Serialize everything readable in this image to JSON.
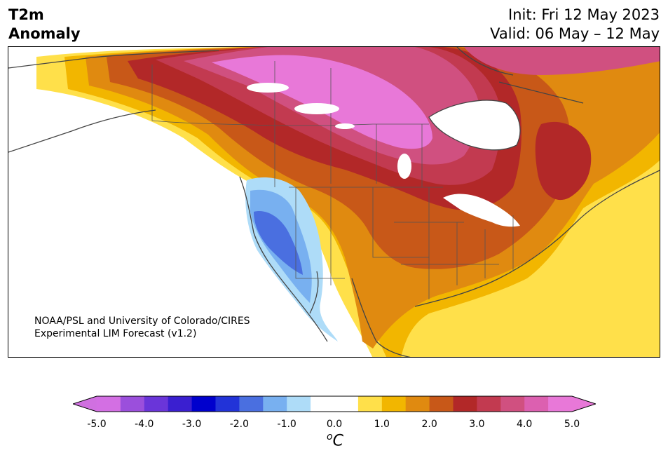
{
  "header": {
    "title_line1": "T2m",
    "title_line2": "Anomaly",
    "init": "Init: Fri 12 May 2023",
    "valid": "Valid: 06 May – 12 May"
  },
  "credit": {
    "line1": "NOAA/PSL and University of Colorado/CIRES",
    "line2": "Experimental LIM Forecast (v1.2)"
  },
  "colorbar": {
    "unit_base": "C",
    "unit_sup": "o",
    "ticks": [
      "-5.0",
      "-4.0",
      "-3.0",
      "-2.0",
      "-1.0",
      "0.0",
      "1.0",
      "2.0",
      "3.0",
      "4.0",
      "5.0"
    ],
    "under_color": "#d070e0",
    "over_color": "#e878d8",
    "colors": [
      "#d36fe3",
      "#9b4fdc",
      "#6a35d9",
      "#3a1fd0",
      "#0000cd",
      "#2233d8",
      "#4a6fe0",
      "#78b0f0",
      "#aedcf8",
      "#ffffff",
      "#ffffff",
      "#ffe04a",
      "#f2b600",
      "#e08a10",
      "#c85818",
      "#b22828",
      "#c23a50",
      "#d05080",
      "#dc60b0",
      "#e878d8"
    ]
  },
  "map": {
    "legend_note": "temperature anomaly shading",
    "outline_color": "#444444"
  }
}
